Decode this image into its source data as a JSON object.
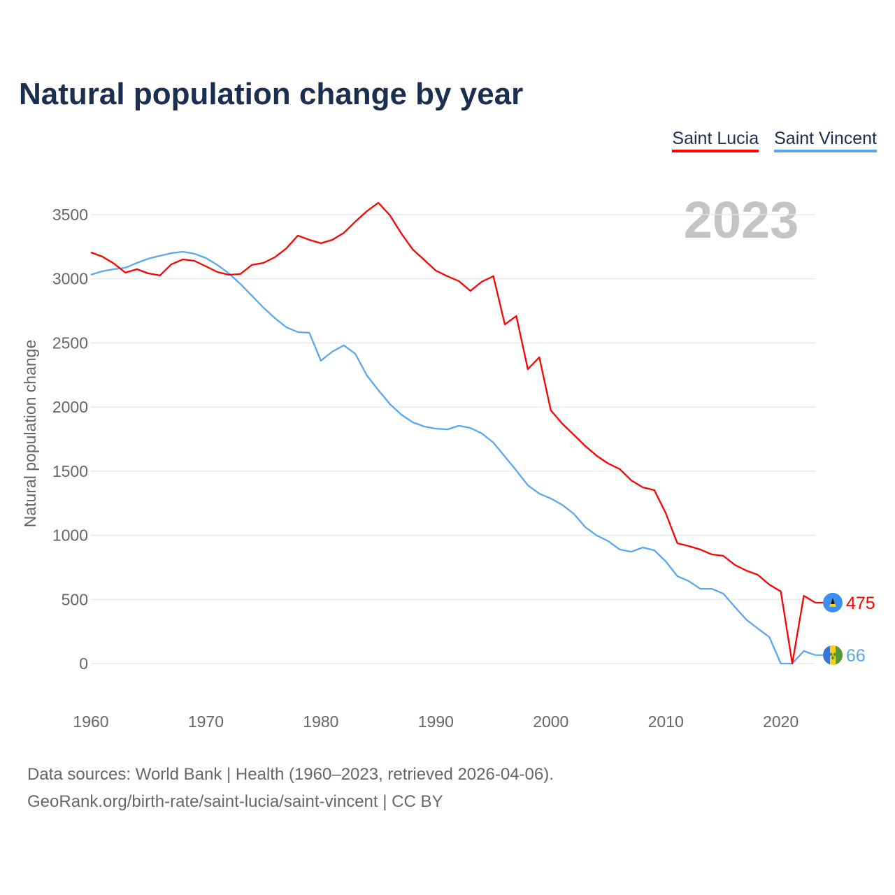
{
  "chart_data": {
    "type": "line",
    "title": "Natural population change by year",
    "ylabel": "Natural population change",
    "xlabel": "",
    "current_year_label": "2023",
    "xlim": [
      1960,
      2023
    ],
    "ylim": [
      -300,
      3700
    ],
    "grid": true,
    "legend_placement": "top-right",
    "x_ticks": [
      1960,
      1970,
      1980,
      1990,
      2000,
      2010,
      2020
    ],
    "y_ticks": [
      0,
      500,
      1000,
      1500,
      2000,
      2500,
      3000,
      3500
    ],
    "x": [
      1960,
      1961,
      1962,
      1963,
      1964,
      1965,
      1966,
      1967,
      1968,
      1969,
      1970,
      1971,
      1972,
      1973,
      1974,
      1975,
      1976,
      1977,
      1978,
      1979,
      1980,
      1981,
      1982,
      1983,
      1984,
      1985,
      1986,
      1987,
      1988,
      1989,
      1990,
      1991,
      1992,
      1993,
      1994,
      1995,
      1996,
      1997,
      1998,
      1999,
      2000,
      2001,
      2002,
      2003,
      2004,
      2005,
      2006,
      2007,
      2008,
      2009,
      2010,
      2011,
      2012,
      2013,
      2014,
      2015,
      2016,
      2017,
      2018,
      2019,
      2020,
      2021,
      2022,
      2023
    ],
    "series": [
      {
        "name": "Saint Lucia",
        "color": "#ff0000",
        "end_label": "475",
        "flag": "saint-lucia-flag",
        "values": [
          3206,
          3173,
          3119,
          3048,
          3075,
          3042,
          3026,
          3113,
          3151,
          3140,
          3097,
          3053,
          3031,
          3037,
          3108,
          3124,
          3168,
          3238,
          3337,
          3304,
          3277,
          3304,
          3358,
          3446,
          3527,
          3593,
          3495,
          3353,
          3228,
          3146,
          3064,
          3020,
          2982,
          2906,
          2977,
          3020,
          2644,
          2710,
          2295,
          2388,
          1974,
          1870,
          1783,
          1696,
          1619,
          1559,
          1516,
          1428,
          1374,
          1352,
          1172,
          938,
          916,
          889,
          851,
          840,
          769,
          725,
          692,
          616,
          562,
          0,
          529,
          475
        ]
      },
      {
        "name": "Saint Vincent",
        "color": "#5aa7ef",
        "end_label": "66",
        "flag": "saint-vincent-flag",
        "values": [
          3031,
          3059,
          3075,
          3086,
          3124,
          3157,
          3179,
          3200,
          3211,
          3195,
          3162,
          3108,
          3042,
          2960,
          2868,
          2775,
          2693,
          2622,
          2584,
          2579,
          2361,
          2432,
          2481,
          2415,
          2246,
          2132,
          2023,
          1941,
          1881,
          1848,
          1832,
          1826,
          1854,
          1837,
          1794,
          1723,
          1614,
          1505,
          1390,
          1325,
          1287,
          1237,
          1167,
          1063,
          998,
          954,
          889,
          872,
          905,
          883,
          796,
          681,
          643,
          583,
          583,
          545,
          442,
          343,
          273,
          207,
          0,
          0,
          98,
          66
        ]
      }
    ]
  },
  "footer": {
    "line1": "Data sources: World Bank | Health (1960–2023, retrieved 2026-04-06).",
    "line2": "GeoRank.org/birth-rate/saint-lucia/saint-vincent | CC BY"
  }
}
